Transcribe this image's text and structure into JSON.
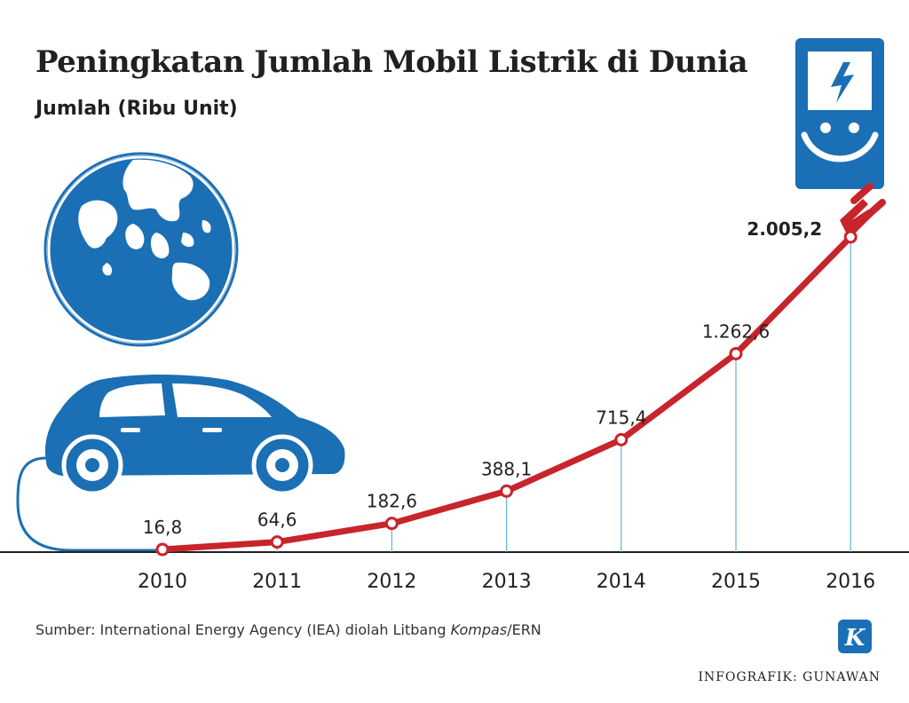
{
  "title": "Peningkatan Jumlah Mobil Listrik di Dunia",
  "subtitle": "Jumlah (Ribu Unit)",
  "source": {
    "prefix": "Sumber: International Energy Agency (IEA) diolah Litbang ",
    "italic": "Kompas",
    "suffix": "/ERN"
  },
  "credit": "INFOGRAFIK: GUNAWAN",
  "logo_letter": "K",
  "colors": {
    "line": "#c8242b",
    "illustration": "#1b6fb5",
    "guide": "#5fb4d6",
    "text": "#231f20"
  },
  "icons": [
    "globe-icon",
    "car-icon",
    "charging-station-icon",
    "plug-icon",
    "lightning-bolt-icon"
  ],
  "chart_data": {
    "type": "line",
    "x": [
      "2010",
      "2011",
      "2012",
      "2013",
      "2014",
      "2015",
      "2016"
    ],
    "values": [
      16.8,
      64.6,
      182.6,
      388.1,
      715.4,
      1262.6,
      2005.2
    ],
    "labels": [
      "16,8",
      "64,6",
      "182,6",
      "388,1",
      "715,4",
      "1.262,6",
      "2.005,2"
    ],
    "grid": false
  }
}
